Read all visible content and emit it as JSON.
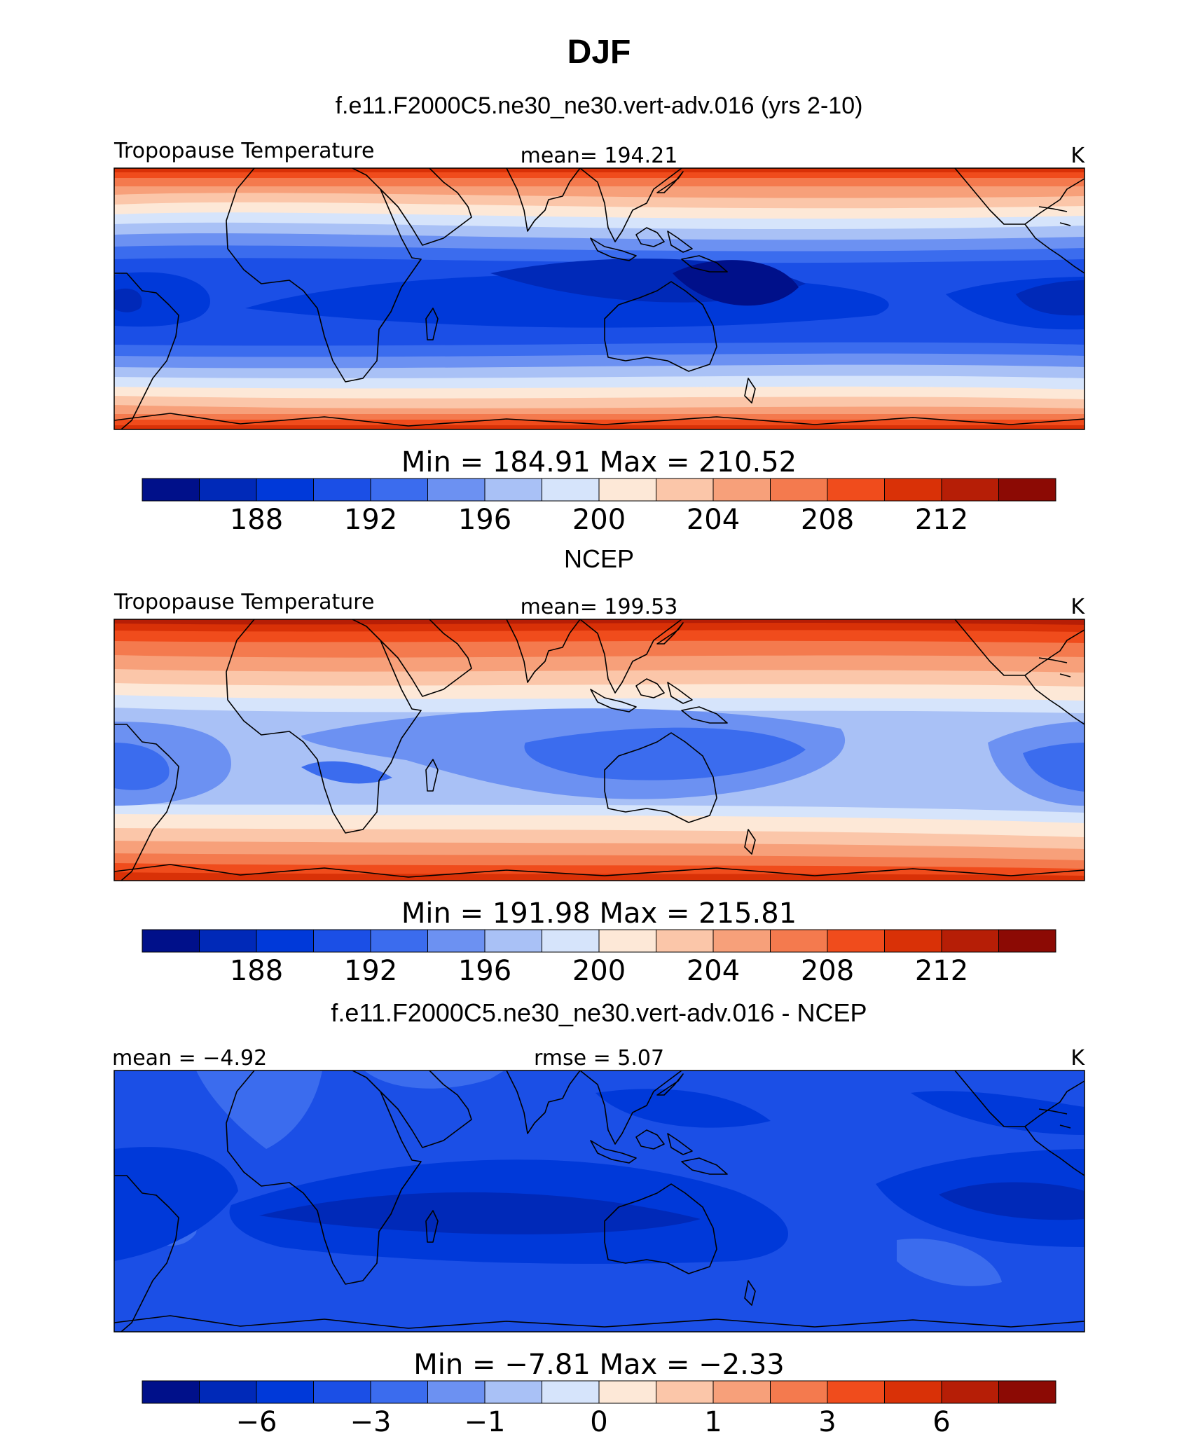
{
  "figure": {
    "title": "DJF",
    "subtitle": "f.e11.F2000C5.ne30_ne30.vert-adv.016 (yrs 2-10)"
  },
  "colors": {
    "palette": [
      "#00108a",
      "#0029b8",
      "#0039d9",
      "#1b4fe6",
      "#3b6cee",
      "#6c91f2",
      "#a9c1f6",
      "#d6e4fb",
      "#fde8d7",
      "#fbc6a9",
      "#f7a07a",
      "#f47a4e",
      "#f04c1c",
      "#d93107",
      "#b61e06",
      "#8c0a04"
    ],
    "coastline": "#000000"
  },
  "panels": [
    {
      "heading": "",
      "left_label": "Tropopause  Temperature",
      "center_label": "mean=  194.21",
      "units": "K",
      "minmax": "Min  =  184.91  Max  =  210.52",
      "colorbar_ticks": [
        "188",
        "192",
        "196",
        "200",
        "204",
        "208",
        "212"
      ]
    },
    {
      "heading": "NCEP",
      "left_label": "Tropopause  Temperature",
      "center_label": "mean=  199.53",
      "units": "K",
      "minmax": "Min  =  191.98  Max  =  215.81",
      "colorbar_ticks": [
        "188",
        "192",
        "196",
        "200",
        "204",
        "208",
        "212"
      ]
    },
    {
      "heading": "f.e11.F2000C5.ne30_ne30.vert-adv.016 - NCEP",
      "left_label": "mean  =   −4.92",
      "center_label": "rmse  =     5.07",
      "units": "K",
      "minmax": "Min  =   −7.81  Max  =   −2.33",
      "colorbar_ticks": [
        "−6",
        "−3",
        "−1",
        "0",
        "1",
        "3",
        "6"
      ]
    }
  ],
  "chart_data": [
    {
      "type": "heatmap",
      "title": "f.e11.F2000C5.ne30_ne30.vert-adv.016 (yrs 2-10)",
      "variable": "Tropopause Temperature",
      "units": "K",
      "mean": 194.21,
      "min": 184.91,
      "max": 210.52,
      "colorbar_levels": [
        186,
        188,
        190,
        192,
        194,
        196,
        198,
        200,
        202,
        204,
        206,
        208,
        210,
        212,
        214
      ],
      "colorbar_tick_labels": [
        188,
        192,
        196,
        200,
        204,
        208,
        212
      ],
      "map": "global cylindrical equidistant, centered near 0°E"
    },
    {
      "type": "heatmap",
      "title": "NCEP",
      "variable": "Tropopause Temperature",
      "units": "K",
      "mean": 199.53,
      "min": 191.98,
      "max": 215.81,
      "colorbar_levels": [
        186,
        188,
        190,
        192,
        194,
        196,
        198,
        200,
        202,
        204,
        206,
        208,
        210,
        212,
        214
      ],
      "colorbar_tick_labels": [
        188,
        192,
        196,
        200,
        204,
        208,
        212
      ],
      "map": "global cylindrical equidistant, centered near 0°E"
    },
    {
      "type": "heatmap",
      "title": "f.e11.F2000C5.ne30_ne30.vert-adv.016 - NCEP",
      "units": "K",
      "mean": -4.92,
      "rmse": 5.07,
      "min": -7.81,
      "max": -2.33,
      "colorbar_tick_labels": [
        -6,
        -3,
        -1,
        0,
        1,
        3,
        6
      ],
      "map": "global cylindrical equidistant, centered near 0°E"
    }
  ]
}
